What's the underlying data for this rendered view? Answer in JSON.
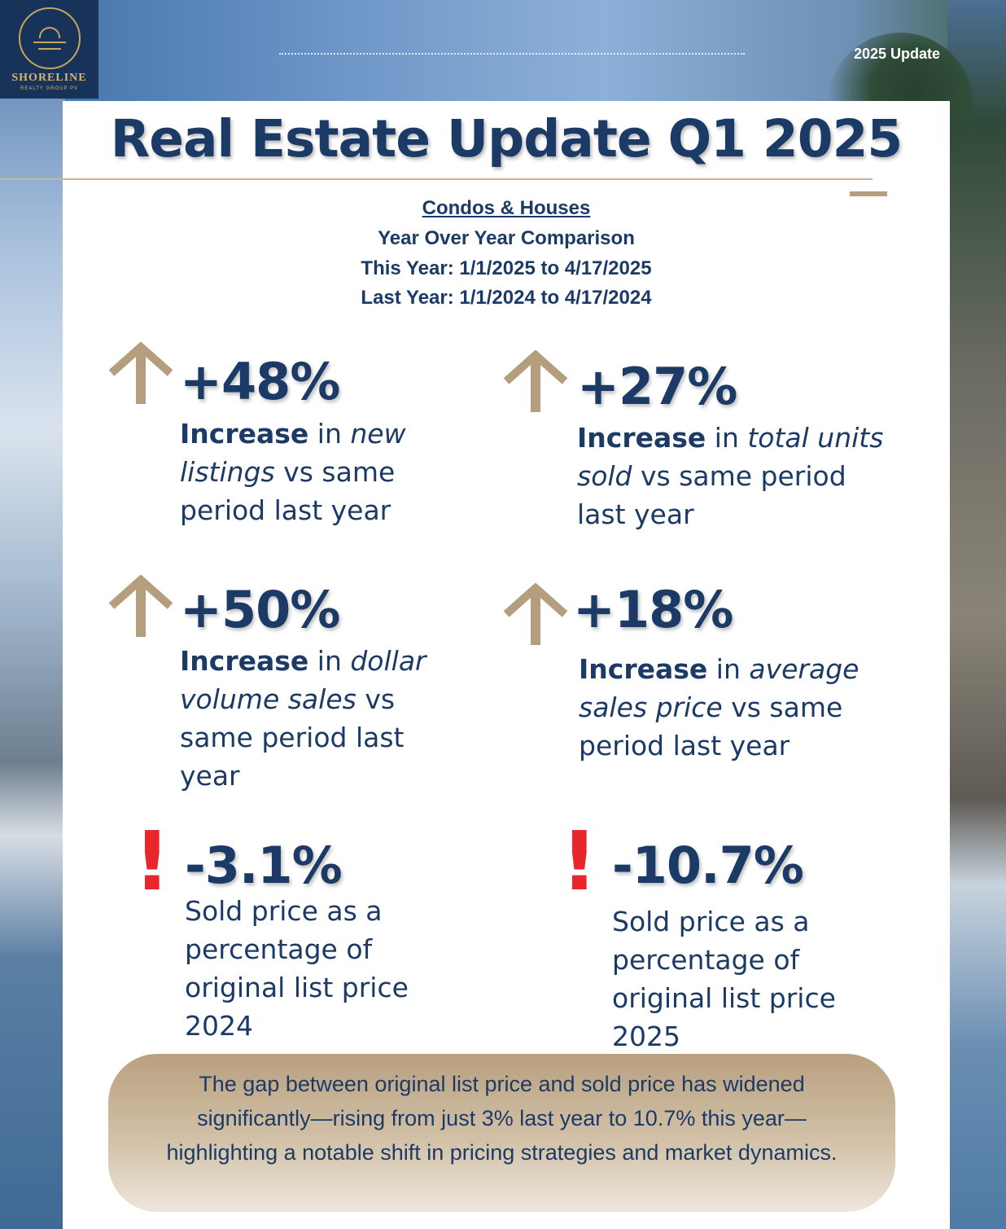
{
  "header": {
    "update_tag": "2025 Update",
    "logo": {
      "name": "SHORELINE",
      "sub": "REALTY GROUP PV"
    }
  },
  "title": "Real Estate Update Q1 2025",
  "subheads": {
    "category": "Condos & Houses",
    "comparison": "Year Over Year Comparison",
    "this_year": "This Year: 1/1/2025 to 4/17/2025",
    "last_year": "Last Year: 1/1/2024 to 4/17/2024"
  },
  "colors": {
    "navy": "#1c3a66",
    "tan": "#b59e7e",
    "red": "#e8262b"
  },
  "stats": [
    {
      "icon": "up-arrow-icon",
      "value": "+48%",
      "bold": "Increase",
      "pre": " in ",
      "italic": "new listings",
      "post": " vs same period last year"
    },
    {
      "icon": "up-arrow-icon",
      "value": "+27%",
      "bold": "Increase",
      "pre": " in ",
      "italic": "total units sold",
      "post": " vs same period last year"
    },
    {
      "icon": "up-arrow-icon",
      "value": "+50%",
      "bold": "Increase",
      "pre": " in ",
      "italic": "dollar volume sales",
      "post": " vs same period last year"
    },
    {
      "icon": "up-arrow-icon",
      "value": "+18%",
      "bold": "Increase",
      "pre": " in ",
      "italic": "average sales price",
      "post": " vs same period last year"
    },
    {
      "icon": "exclamation-icon",
      "value": "-3.1%",
      "text": "Sold price as a percentage of original list price 2024"
    },
    {
      "icon": "exclamation-icon",
      "value": "-10.7%",
      "text": "Sold price as a percentage of original list price 2025"
    }
  ],
  "summary": "The gap between original list price and sold price has widened significantly—rising from just 3% last year to 10.7% this year—highlighting a notable shift in pricing strategies and market dynamics."
}
